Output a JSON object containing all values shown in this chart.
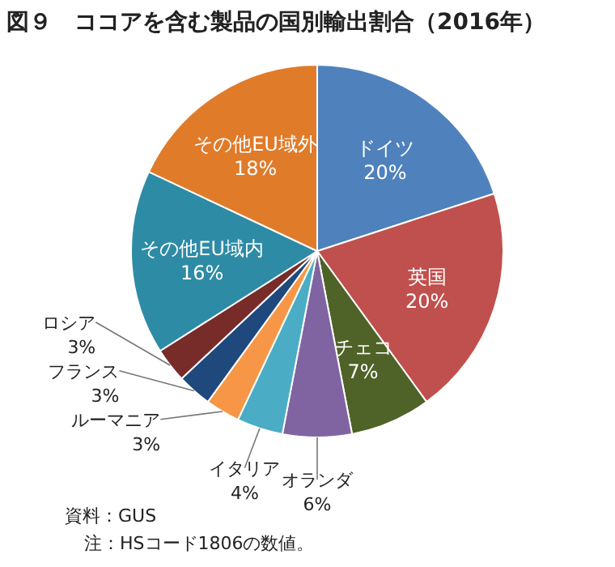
{
  "chart_data": {
    "type": "pie",
    "title": "図９　ココアを含む製品の国別輸出割合（2016年）",
    "categories": [
      "ドイツ",
      "英国",
      "チェコ",
      "オランダ",
      "イタリア",
      "ルーマニア",
      "フランス",
      "ロシア",
      "その他EU域内",
      "その他EU域外"
    ],
    "values": [
      20,
      20,
      7,
      6,
      4,
      3,
      3,
      3,
      16,
      18
    ],
    "colors": [
      "#4f81bd",
      "#c0504d",
      "#4f6228",
      "#8064a2",
      "#4bacc6",
      "#f79646",
      "#1f497d",
      "#772c2a",
      "#2e8ba5",
      "#e07b2a"
    ],
    "value_labels": [
      "20%",
      "20%",
      "7%",
      "6%",
      "4%",
      "3%",
      "3%",
      "3%",
      "16%",
      "18%"
    ],
    "annotations": [
      "資料：GUS",
      "注：HSコード1806の数値。"
    ]
  }
}
